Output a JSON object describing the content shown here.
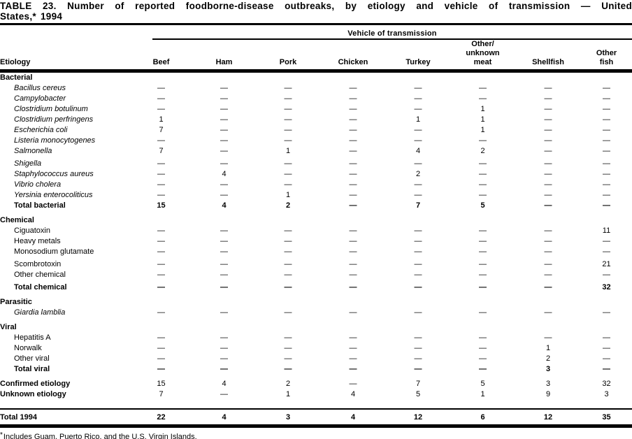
{
  "title": {
    "line1": "TABLE 23. Number of reported foodborne-disease outbreaks, by etiology and vehicle of transmission — United",
    "line2": "States,* 1994"
  },
  "table": {
    "spanner_label": "Vehicle of transmission",
    "etiology_header": "Etiology",
    "columns": [
      {
        "lines": [
          "Beef"
        ]
      },
      {
        "lines": [
          "Ham"
        ]
      },
      {
        "lines": [
          "Pork"
        ]
      },
      {
        "lines": [
          "Chicken"
        ]
      },
      {
        "lines": [
          "Turkey"
        ]
      },
      {
        "lines": [
          "Other/",
          "unknown",
          "meat"
        ]
      },
      {
        "lines": [
          "Shellfish"
        ]
      },
      {
        "lines": [
          "Other",
          "fish"
        ]
      }
    ],
    "sections": [
      {
        "label": "Bacterial",
        "gap_before": 0,
        "rows": [
          {
            "label": "Bacillus cereus",
            "italic": true,
            "cells": [
              "—",
              "—",
              "—",
              "—",
              "—",
              "—",
              "—",
              "—"
            ]
          },
          {
            "label": "Campylobacter",
            "italic": true,
            "cells": [
              "—",
              "—",
              "—",
              "—",
              "—",
              "—",
              "—",
              "—"
            ]
          },
          {
            "label": "Clostridium botulinum",
            "italic": true,
            "cells": [
              "—",
              "—",
              "—",
              "—",
              "—",
              "1",
              "—",
              "—"
            ]
          },
          {
            "label": "Clostridium perfringens",
            "italic": true,
            "cells": [
              "1",
              "—",
              "—",
              "—",
              "1",
              "1",
              "—",
              "—"
            ]
          },
          {
            "label": "Escherichia coli",
            "italic": true,
            "cells": [
              "7",
              "—",
              "—",
              "—",
              "—",
              "1",
              "—",
              "—"
            ]
          },
          {
            "label": "Listeria monocytogenes",
            "italic": true,
            "cells": [
              "—",
              "—",
              "—",
              "—",
              "—",
              "—",
              "—",
              "—"
            ]
          },
          {
            "label": "Salmonella",
            "italic": true,
            "cells": [
              "7",
              "—",
              "1",
              "—",
              "4",
              "2",
              "—",
              "—"
            ]
          },
          {
            "label": "Shigella",
            "italic": true,
            "gap_before": 3,
            "cells": [
              "—",
              "—",
              "—",
              "—",
              "—",
              "—",
              "—",
              "—"
            ]
          },
          {
            "label": "Staphylococcus aureus",
            "italic": true,
            "cells": [
              "—",
              "4",
              "—",
              "—",
              "2",
              "—",
              "—",
              "—"
            ]
          },
          {
            "label": "Vibrio cholera",
            "italic": true,
            "cells": [
              "—",
              "—",
              "—",
              "—",
              "—",
              "—",
              "—",
              "—"
            ]
          },
          {
            "label": "Yersinia enterocoliticus",
            "italic": true,
            "cells": [
              "—",
              "—",
              "1",
              "—",
              "—",
              "—",
              "—",
              "—"
            ]
          },
          {
            "label": "Total bacterial",
            "bold": true,
            "cells": [
              "15",
              "4",
              "2",
              "—",
              "7",
              "5",
              "—",
              "—"
            ]
          }
        ]
      },
      {
        "label": "Chemical",
        "gap_before": 6,
        "rows": [
          {
            "label": "Ciguatoxin",
            "cells": [
              "—",
              "—",
              "—",
              "—",
              "—",
              "—",
              "—",
              "11"
            ]
          },
          {
            "label": "Heavy metals",
            "cells": [
              "—",
              "—",
              "—",
              "—",
              "—",
              "—",
              "—",
              "—"
            ]
          },
          {
            "label": "Monosodium glutamate",
            "cells": [
              "—",
              "—",
              "—",
              "—",
              "—",
              "—",
              "—",
              "—"
            ]
          },
          {
            "label": "Scombrotoxin",
            "gap_before": 3,
            "cells": [
              "—",
              "—",
              "—",
              "—",
              "—",
              "—",
              "—",
              "21"
            ]
          },
          {
            "label": "Other chemical",
            "cells": [
              "—",
              "—",
              "—",
              "—",
              "—",
              "—",
              "—",
              "—"
            ]
          },
          {
            "label": "Total chemical",
            "bold": true,
            "gap_before": 3,
            "cells": [
              "—",
              "—",
              "—",
              "—",
              "—",
              "—",
              "—",
              "32"
            ]
          }
        ]
      },
      {
        "label": "Parasitic",
        "gap_before": 6,
        "rows": [
          {
            "label": "Giardia lamblia",
            "italic": true,
            "cells": [
              "—",
              "—",
              "—",
              "—",
              "—",
              "—",
              "—",
              "—"
            ]
          }
        ]
      },
      {
        "label": "Viral",
        "gap_before": 6,
        "rows": [
          {
            "label": "Hepatitis A",
            "cells": [
              "—",
              "—",
              "—",
              "—",
              "—",
              "—",
              "—",
              "—"
            ]
          },
          {
            "label": "Norwalk",
            "cells": [
              "—",
              "—",
              "—",
              "—",
              "—",
              "—",
              "1",
              "—"
            ]
          },
          {
            "label": "Other viral",
            "cells": [
              "—",
              "—",
              "—",
              "—",
              "—",
              "—",
              "2",
              "—"
            ]
          },
          {
            "label": "Total viral",
            "bold": true,
            "cells": [
              "—",
              "—",
              "—",
              "—",
              "—",
              "—",
              "3",
              "—"
            ]
          }
        ]
      },
      {
        "label": "",
        "gap_before": 6,
        "rows": [
          {
            "label": "Confirmed etiology",
            "label_bold": true,
            "flush": true,
            "cells": [
              "15",
              "4",
              "2",
              "—",
              "7",
              "5",
              "3",
              "32"
            ]
          },
          {
            "label": "Unknown etiology",
            "label_bold": true,
            "flush": true,
            "cells": [
              "7",
              "—",
              "1",
              "4",
              "5",
              "1",
              "9",
              "3"
            ]
          }
        ]
      },
      {
        "label": "",
        "gap_before": 12,
        "rows": [
          {
            "label": "Total 1994",
            "bold": true,
            "flush": true,
            "grand_total": true,
            "cells": [
              "22",
              "4",
              "3",
              "4",
              "12",
              "6",
              "12",
              "35"
            ]
          }
        ]
      }
    ]
  },
  "footnote": {
    "marker": "*",
    "text": "Includes Guam, Puerto Rico, and the U.S. Virgin Islands."
  }
}
